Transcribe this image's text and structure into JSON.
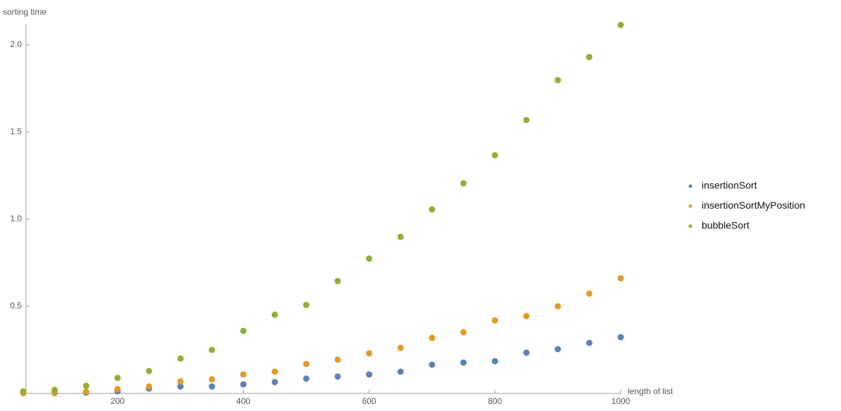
{
  "chart_data": {
    "type": "scatter",
    "y_label": "sorting time",
    "x_label": "length of list",
    "xlim": [
      50,
      1000
    ],
    "ylim": [
      0,
      2.12
    ],
    "xticks": [
      200,
      400,
      600,
      800,
      1000
    ],
    "yticks": [
      0.5,
      {
        "value": 1,
        "label": "1.0"
      },
      1.5,
      {
        "value": 2,
        "label": "2.0"
      }
    ],
    "x": [
      50,
      100,
      150,
      200,
      250,
      300,
      350,
      400,
      450,
      500,
      550,
      600,
      650,
      700,
      750,
      800,
      850,
      900,
      950,
      1000
    ],
    "series": [
      {
        "name": "insertionSort",
        "color": "#5e81b5",
        "values": [
          0.001,
          0.002,
          0.005,
          0.012,
          0.028,
          0.04,
          0.04,
          0.052,
          0.065,
          0.085,
          0.097,
          0.109,
          0.125,
          0.165,
          0.177,
          0.185,
          0.234,
          0.254,
          0.29,
          0.323
        ]
      },
      {
        "name": "insertionSortMyPosition",
        "color": "#e19c24",
        "values": [
          0.001,
          0.005,
          0.01,
          0.025,
          0.04,
          0.069,
          0.081,
          0.109,
          0.125,
          0.169,
          0.194,
          0.23,
          0.262,
          0.319,
          0.351,
          0.419,
          0.444,
          0.5,
          0.573,
          0.661
        ]
      },
      {
        "name": "bubbleSort",
        "color": "#8fb032",
        "values": [
          0.012,
          0.02,
          0.044,
          0.089,
          0.129,
          0.2,
          0.25,
          0.359,
          0.452,
          0.508,
          0.645,
          0.774,
          0.899,
          1.056,
          1.206,
          1.367,
          1.569,
          1.798,
          1.931,
          2.115
        ]
      }
    ]
  }
}
